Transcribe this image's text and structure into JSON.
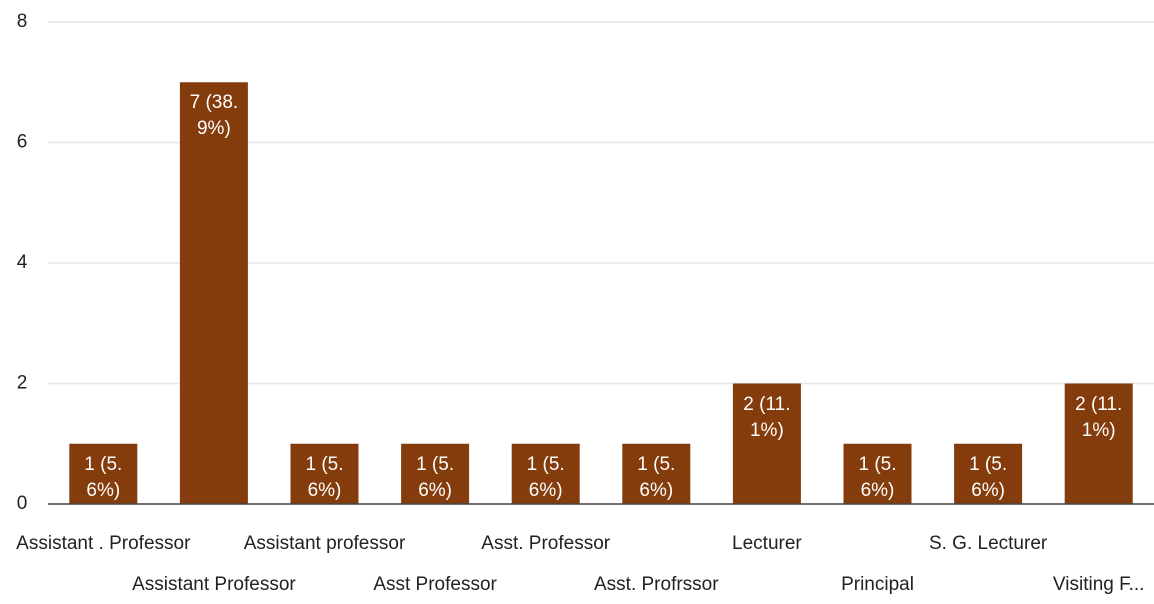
{
  "chart_data": {
    "type": "bar",
    "categories": [
      "Assistant . Professor",
      "Assistant Professor",
      "Assistant professor",
      "Asst Professor",
      "Asst. Professor",
      "Asst. Profrssor",
      "Lecturer",
      "Principal",
      "S. G. Lecturer",
      "Visiting F..."
    ],
    "values": [
      1,
      7,
      1,
      1,
      1,
      1,
      2,
      1,
      1,
      2
    ],
    "value_labels": [
      "1 (5.6%)",
      "7 (38.9%)",
      "1 (5.6%)",
      "1 (5.6%)",
      "1 (5.6%)",
      "1 (5.6%)",
      "2 (11.1%)",
      "1 (5.6%)",
      "1 (5.6%)",
      "2 (11.1%)"
    ],
    "color": "#843c0c",
    "ylim": [
      0,
      8
    ],
    "yticks": [
      0,
      2,
      4,
      6,
      8
    ],
    "grid": true
  }
}
